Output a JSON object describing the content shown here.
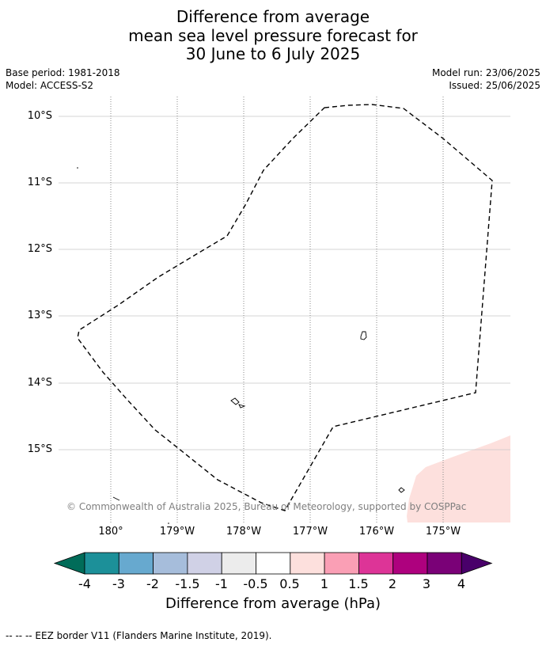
{
  "title": {
    "line1": "Difference from average",
    "line2": "mean sea level pressure forecast for",
    "line3": "30 June to 6 July 2025"
  },
  "meta": {
    "base_period": "Base period: 1981-2018",
    "model": "Model: ACCESS-S2",
    "model_run": "Model run: 23/06/2025",
    "issued": "Issued: 25/06/2025"
  },
  "map": {
    "lat_labels": [
      "10°S",
      "11°S",
      "12°S",
      "13°S",
      "14°S",
      "15°S"
    ],
    "lon_labels": [
      "180°",
      "179°W",
      "178°W",
      "177°W",
      "176°W",
      "175°W"
    ],
    "credit": "© Commonwealth of Australia 2025, Bureau of Meteorology, supported by COSPPac",
    "anomaly_fill_color": "#fde0dd",
    "eez_line_color": "#000000"
  },
  "colorbar": {
    "labels": [
      "-4",
      "-3",
      "-2",
      "-1.5",
      "-1",
      "-0.5",
      "0.5",
      "1",
      "1.5",
      "2",
      "3",
      "4"
    ],
    "colors": [
      "#016c59",
      "#1c9099",
      "#67a9cf",
      "#a6bddb",
      "#d0d1e6",
      "#ececec",
      "#ffffff",
      "#fde0dd",
      "#fa9fb5",
      "#dd3497",
      "#ae017e",
      "#7a0177",
      "#49006a"
    ],
    "title": "Difference from average (hPa)"
  },
  "footer": {
    "legend": "--  --  -- EEZ border V11 (Flanders Marine Institute, 2019)."
  }
}
